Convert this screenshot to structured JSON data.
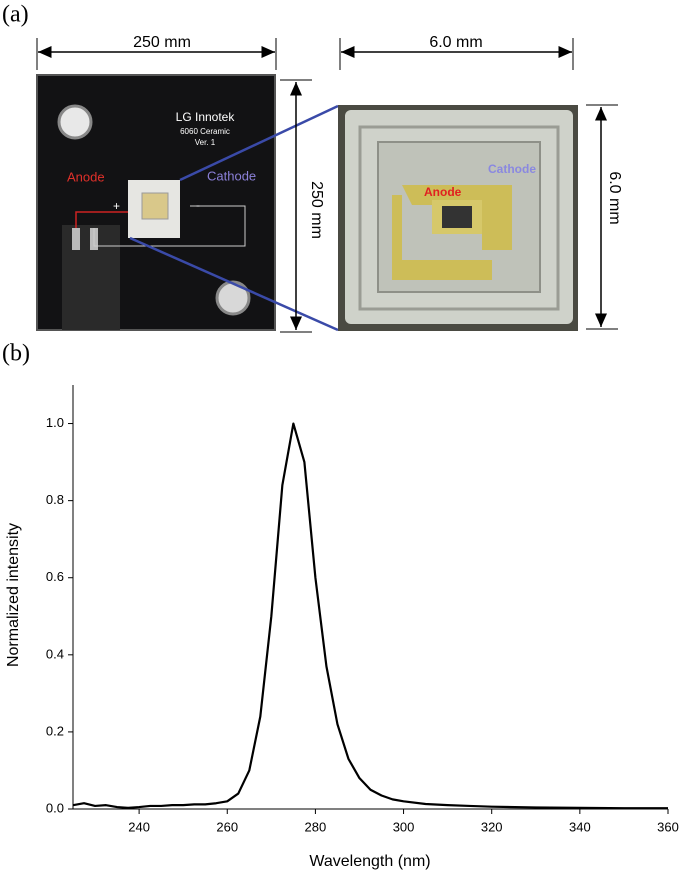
{
  "panel_a": {
    "label": "(a)",
    "board_width": "250 mm",
    "board_height": "250 mm",
    "chip_width": "6.0 mm",
    "chip_height": "6.0 mm",
    "board_text": [
      "LG Innotek",
      "6060 Ceramic",
      "Ver. 1"
    ],
    "anode": "Anode",
    "cathode": "Cathode",
    "plus": "+",
    "minus": "-",
    "chip_anode": "Anode",
    "chip_cathode": "Cathode"
  },
  "panel_b_label": "(b)",
  "chart_data": {
    "type": "line",
    "x_label": "Wavelength (nm)",
    "y_label": "Normalized intensity",
    "color": "#000000",
    "x": [
      225,
      227.5,
      230,
      232.5,
      235,
      237.5,
      240,
      242.5,
      245,
      247.5,
      250,
      252.5,
      255,
      257.5,
      260,
      262.5,
      265,
      267.5,
      270,
      272.5,
      275,
      277.5,
      280,
      282.5,
      285,
      287.5,
      290,
      292.5,
      295,
      297.5,
      300,
      305,
      310,
      315,
      320,
      330,
      340,
      350,
      360
    ],
    "y": [
      0.01,
      0.015,
      0.008,
      0.01,
      0.005,
      0.003,
      0.005,
      0.008,
      0.008,
      0.01,
      0.01,
      0.012,
      0.012,
      0.015,
      0.02,
      0.04,
      0.1,
      0.24,
      0.5,
      0.84,
      1.0,
      0.9,
      0.6,
      0.37,
      0.22,
      0.13,
      0.08,
      0.05,
      0.035,
      0.025,
      0.02,
      0.013,
      0.01,
      0.008,
      0.006,
      0.004,
      0.003,
      0.002,
      0.002
    ],
    "xlim": [
      225,
      360
    ],
    "ylim": [
      0,
      1.1
    ],
    "xticks": [
      240,
      260,
      280,
      300,
      320,
      340,
      360
    ],
    "yticks": [
      {
        "value": 0,
        "label": "0.0"
      },
      0.2,
      0.4,
      0.6,
      0.8,
      {
        "value": 1,
        "label": "1.0"
      }
    ]
  }
}
